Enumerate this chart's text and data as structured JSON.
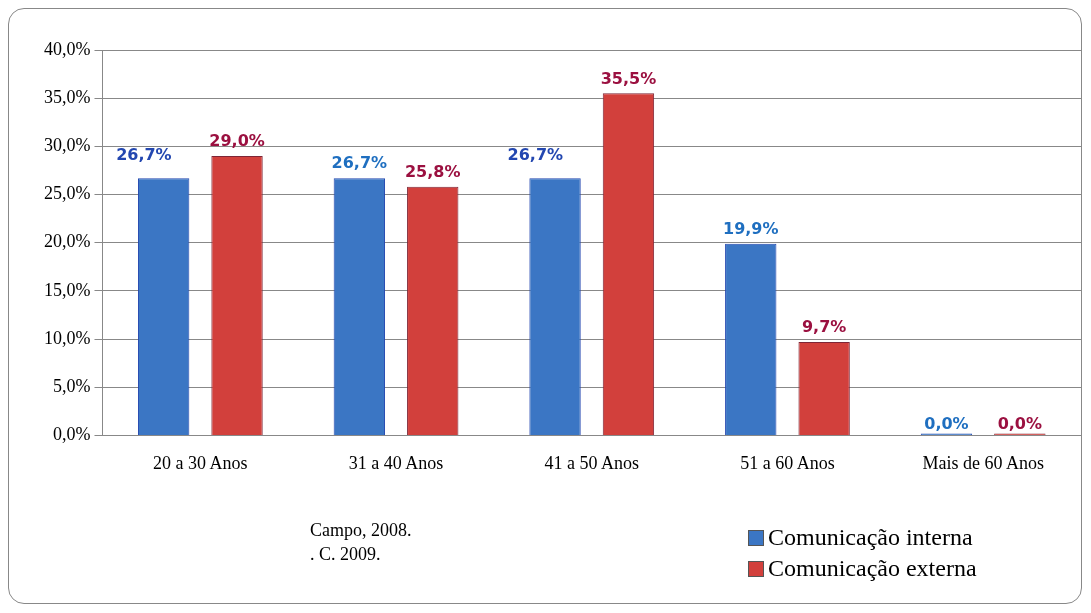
{
  "chart_data": {
    "type": "bar",
    "categories": [
      "20 a 30 Anos",
      "31 a 40 Anos",
      "41 a 50 Anos",
      "51 a 60 Anos",
      "Mais de 60 Anos"
    ],
    "series": [
      {
        "name": "Comunicação interna",
        "color": "#3b76c4",
        "values": [
          26.7,
          26.7,
          26.7,
          19.9,
          0
        ],
        "value_labels": [
          "26,7%",
          "26,7%",
          "26,7%",
          "19,9%",
          "0,0%"
        ]
      },
      {
        "name": "Comunicação externa",
        "color": "#d2403c",
        "values": [
          29.0,
          25.8,
          35.5,
          9.7,
          0
        ],
        "value_labels": [
          "29,0%",
          "25,8%",
          "35,5%",
          "9,7%",
          "0,0%"
        ]
      }
    ],
    "ylim": [
      0,
      40
    ],
    "yticks": [
      {
        "value": 0,
        "label": "0,0%"
      },
      {
        "value": 5,
        "label": "5,0%"
      },
      {
        "value": 10,
        "label": "10,0%"
      },
      {
        "value": 15,
        "label": "15,0%"
      },
      {
        "value": 20,
        "label": "20,0%"
      },
      {
        "value": 25,
        "label": "25,0%"
      },
      {
        "value": 30,
        "label": "30,0%"
      },
      {
        "value": 35,
        "label": "35,0%"
      },
      {
        "value": 40,
        "label": "40,0%"
      }
    ],
    "grid": "y",
    "legend": "bottom right",
    "annotations": [
      "Campo, 2008.",
      ". C. 2009."
    ]
  }
}
